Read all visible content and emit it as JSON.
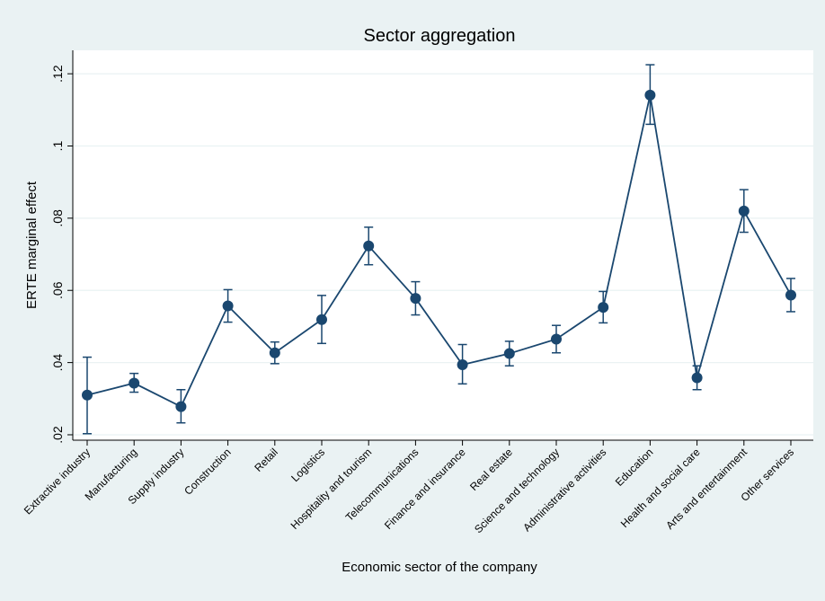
{
  "chart_data": {
    "type": "line",
    "title": "Sector aggregation",
    "xlabel": "Economic sector of the company",
    "ylabel": "ERTE marginal effect",
    "categories": [
      "Extractive industry",
      "Manufacturing",
      "Supply industry",
      "Construction",
      "Retail",
      "Logistics",
      "Hospitality and tourism",
      "Telecommunications",
      "Finance and insurance",
      "Real estate",
      "Science and technology",
      "Administrative activities",
      "Education",
      "Health and social care",
      "Arts and entertainment",
      "Other services"
    ],
    "series": [
      {
        "values": [
          0.031,
          0.0343,
          0.0278,
          0.0557,
          0.0427,
          0.0519,
          0.0723,
          0.0578,
          0.0394,
          0.0425,
          0.0465,
          0.0553,
          0.1141,
          0.0358,
          0.082,
          0.0587
        ],
        "ci_low": [
          0.0203,
          0.0318,
          0.0233,
          0.0512,
          0.0397,
          0.0453,
          0.0671,
          0.0532,
          0.0341,
          0.0391,
          0.0427,
          0.051,
          0.106,
          0.0325,
          0.0761,
          0.0541
        ],
        "ci_high": [
          0.0415,
          0.037,
          0.0325,
          0.0602,
          0.0457,
          0.0586,
          0.0775,
          0.0624,
          0.045,
          0.0459,
          0.0503,
          0.0597,
          0.1225,
          0.0391,
          0.0879,
          0.0633
        ]
      }
    ],
    "yticks": [
      0.02,
      0.04,
      0.06,
      0.08,
      0.1,
      0.12
    ],
    "ytick_labels": [
      ".02",
      ".04",
      ".06",
      ".08",
      ".1",
      ".12"
    ],
    "ylim": [
      0.0185,
      0.1265
    ],
    "grid": true,
    "colors": {
      "line": "#1a476f",
      "grid": "#eaf2f3",
      "plot_bg": "#ffffff",
      "page_bg": "#eaf2f3"
    }
  }
}
